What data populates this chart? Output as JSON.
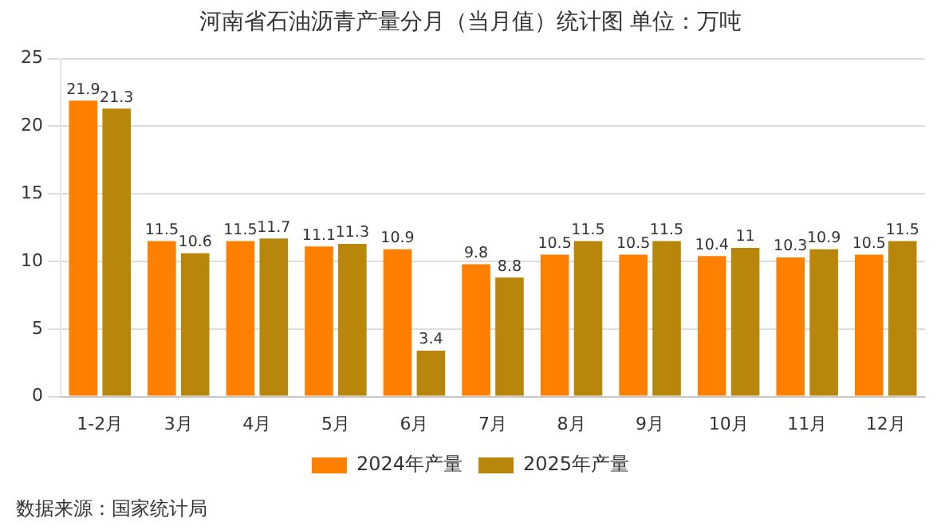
{
  "chart_data": {
    "type": "bar",
    "title": "河南省石油沥青产量分月（当月值）统计图 单位：万吨",
    "categories": [
      "1-2月",
      "3月",
      "4月",
      "5月",
      "6月",
      "7月",
      "8月",
      "9月",
      "10月",
      "11月",
      "12月"
    ],
    "series": [
      {
        "name": "2024年产量",
        "color": "#ff8000",
        "values": [
          21.9,
          11.5,
          11.5,
          11.1,
          10.9,
          9.8,
          10.5,
          10.5,
          10.4,
          10.3,
          10.5
        ]
      },
      {
        "name": "2025年产量",
        "color": "#b8860b",
        "values": [
          21.3,
          10.6,
          11.7,
          11.3,
          3.4,
          8.8,
          11.5,
          11.5,
          11,
          10.9,
          11.5
        ]
      }
    ],
    "ylim": [
      0,
      25
    ],
    "yticks": [
      0,
      5,
      10,
      15,
      20,
      25
    ],
    "grid": "y",
    "legend": "bottom",
    "data_labels": true,
    "annotations": [
      "数据来源：国家统计局"
    ]
  }
}
